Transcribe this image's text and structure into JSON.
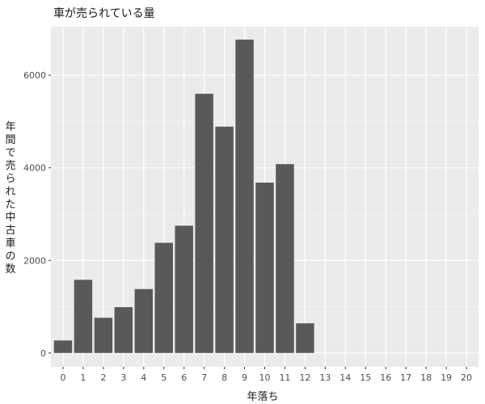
{
  "chart_data": {
    "type": "bar",
    "title": "車が売られている量",
    "xlabel": "年落ち",
    "ylabel": "年間で売られた中古車の数",
    "categories": [
      "0",
      "1",
      "2",
      "3",
      "4",
      "5",
      "6",
      "7",
      "8",
      "9",
      "10",
      "11",
      "12",
      "13",
      "14",
      "15",
      "16",
      "17",
      "18",
      "19",
      "20"
    ],
    "values": [
      270,
      1580,
      760,
      990,
      1380,
      2380,
      2750,
      5600,
      4890,
      6770,
      3680,
      4080,
      640,
      0,
      0,
      0,
      0,
      0,
      0,
      0,
      0
    ],
    "ylim": [
      -300,
      7050
    ],
    "yticks": [
      0,
      2000,
      4000,
      6000
    ],
    "grid": true,
    "colors": {
      "panel": "#ebebeb",
      "grid_major": "#ffffff",
      "bar": "#595959"
    }
  }
}
